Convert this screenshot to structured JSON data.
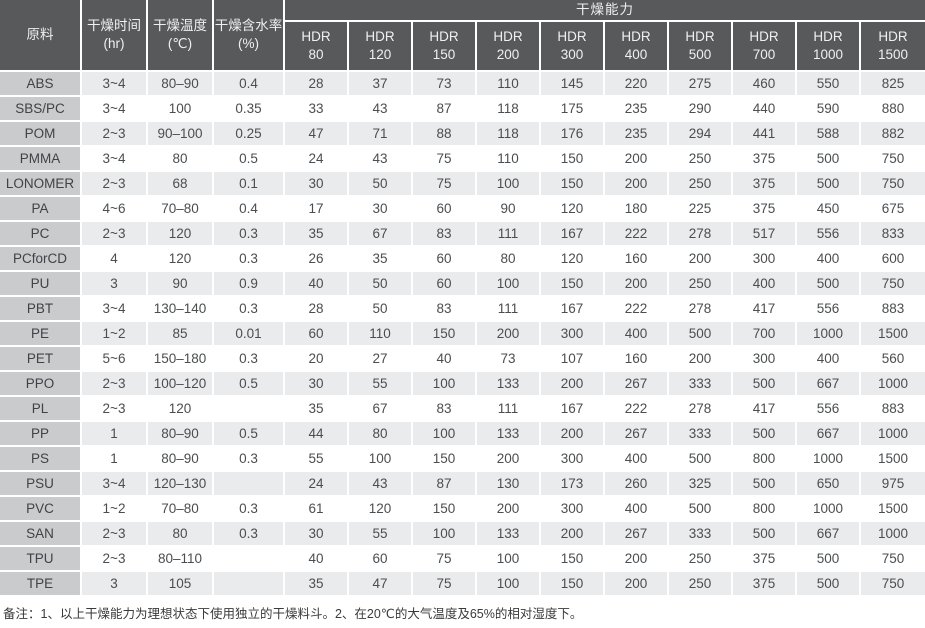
{
  "table": {
    "headers": {
      "material": "原料",
      "time": "干燥时间\n(hr)",
      "temp": "干燥温度\n(℃)",
      "moisture": "干燥含水率\n(%)",
      "capacity_group": "干燥能力",
      "hdr_models": [
        "HDR\n80",
        "HDR\n120",
        "HDR\n150",
        "HDR\n200",
        "HDR\n300",
        "HDR\n400",
        "HDR\n500",
        "HDR\n700",
        "HDR\n1000",
        "HDR\n1500"
      ]
    },
    "rows": [
      {
        "material": "ABS",
        "time": "3~4",
        "temp": "80–90",
        "moisture": "0.4",
        "capacities": [
          28,
          37,
          73,
          110,
          145,
          220,
          275,
          460,
          550,
          825
        ]
      },
      {
        "material": "SBS/PC",
        "time": "3~4",
        "temp": "100",
        "moisture": "0.35",
        "capacities": [
          33,
          43,
          87,
          118,
          175,
          235,
          290,
          440,
          590,
          880
        ]
      },
      {
        "material": "POM",
        "time": "2~3",
        "temp": "90–100",
        "moisture": "0.25",
        "capacities": [
          47,
          71,
          88,
          118,
          176,
          235,
          294,
          441,
          588,
          882
        ]
      },
      {
        "material": "PMMA",
        "time": "3~4",
        "temp": "80",
        "moisture": "0.5",
        "capacities": [
          24,
          43,
          75,
          110,
          150,
          200,
          250,
          375,
          500,
          750
        ]
      },
      {
        "material": "LONOMER",
        "time": "2~3",
        "temp": "68",
        "moisture": "0.1",
        "capacities": [
          30,
          50,
          75,
          100,
          150,
          200,
          250,
          375,
          500,
          750
        ]
      },
      {
        "material": "PA",
        "time": "4~6",
        "temp": "70–80",
        "moisture": "0.4",
        "capacities": [
          17,
          30,
          60,
          90,
          120,
          180,
          225,
          375,
          450,
          675
        ]
      },
      {
        "material": "PC",
        "time": "2~3",
        "temp": "120",
        "moisture": "0.3",
        "capacities": [
          35,
          67,
          83,
          111,
          167,
          222,
          278,
          517,
          556,
          833
        ]
      },
      {
        "material": "PCforCD",
        "time": "4",
        "temp": "120",
        "moisture": "0.3",
        "capacities": [
          26,
          35,
          60,
          80,
          120,
          160,
          200,
          300,
          400,
          600
        ]
      },
      {
        "material": "PU",
        "time": "3",
        "temp": "90",
        "moisture": "0.9",
        "capacities": [
          40,
          50,
          60,
          100,
          150,
          200,
          250,
          400,
          500,
          750
        ]
      },
      {
        "material": "PBT",
        "time": "3~4",
        "temp": "130–140",
        "moisture": "0.3",
        "capacities": [
          28,
          50,
          83,
          111,
          167,
          222,
          278,
          417,
          556,
          883
        ]
      },
      {
        "material": "PE",
        "time": "1~2",
        "temp": "85",
        "moisture": "0.01",
        "capacities": [
          60,
          110,
          150,
          200,
          300,
          400,
          500,
          700,
          1000,
          1500
        ]
      },
      {
        "material": "PET",
        "time": "5~6",
        "temp": "150–180",
        "moisture": "0.3",
        "capacities": [
          20,
          27,
          40,
          73,
          107,
          160,
          200,
          300,
          400,
          560
        ]
      },
      {
        "material": "PPO",
        "time": "2~3",
        "temp": "100–120",
        "moisture": "0.5",
        "capacities": [
          30,
          55,
          100,
          133,
          200,
          267,
          333,
          500,
          667,
          1000
        ]
      },
      {
        "material": "PL",
        "time": "2~3",
        "temp": "120",
        "moisture": "",
        "capacities": [
          35,
          67,
          83,
          111,
          167,
          222,
          278,
          417,
          556,
          883
        ]
      },
      {
        "material": "PP",
        "time": "1",
        "temp": "80–90",
        "moisture": "0.5",
        "capacities": [
          44,
          80,
          100,
          133,
          200,
          267,
          333,
          500,
          667,
          1000
        ]
      },
      {
        "material": "PS",
        "time": "1",
        "temp": "80–90",
        "moisture": "0.3",
        "capacities": [
          55,
          100,
          150,
          200,
          300,
          400,
          500,
          800,
          1000,
          1500
        ]
      },
      {
        "material": "PSU",
        "time": "3~4",
        "temp": "120–130",
        "moisture": "",
        "capacities": [
          24,
          43,
          87,
          130,
          173,
          260,
          325,
          500,
          650,
          975
        ]
      },
      {
        "material": "PVC",
        "time": "1~2",
        "temp": "70–80",
        "moisture": "0.3",
        "capacities": [
          61,
          120,
          150,
          200,
          300,
          400,
          500,
          800,
          1000,
          1500
        ]
      },
      {
        "material": "SAN",
        "time": "2~3",
        "temp": "80",
        "moisture": "0.3",
        "capacities": [
          30,
          55,
          100,
          133,
          200,
          267,
          333,
          500,
          667,
          1000
        ]
      },
      {
        "material": "TPU",
        "time": "2~3",
        "temp": "80–110",
        "moisture": "",
        "capacities": [
          40,
          60,
          75,
          100,
          150,
          200,
          250,
          375,
          500,
          750
        ]
      },
      {
        "material": "TPE",
        "time": "3",
        "temp": "105",
        "moisture": "",
        "capacities": [
          35,
          47,
          75,
          100,
          150,
          200,
          250,
          375,
          500,
          750
        ]
      }
    ]
  },
  "footer": {
    "note": "备注：1、以上干燥能力为理想状态下使用独立的干燥料斗。2、在20℃的大气温度及65%的相对湿度下。"
  },
  "colors": {
    "header_bg": "#58595b",
    "header_text": "#eff0f0",
    "material_column_bg": "#c9cbcd",
    "stripe_row_bg": "#e9ebed",
    "white_row_bg": "#ffffff",
    "body_text": "#4b4d4f"
  },
  "layout_cols": {
    "material_w": 82,
    "time_w": 66,
    "temp_w": 66,
    "moisture_w": 71,
    "hdr_w": 64
  }
}
